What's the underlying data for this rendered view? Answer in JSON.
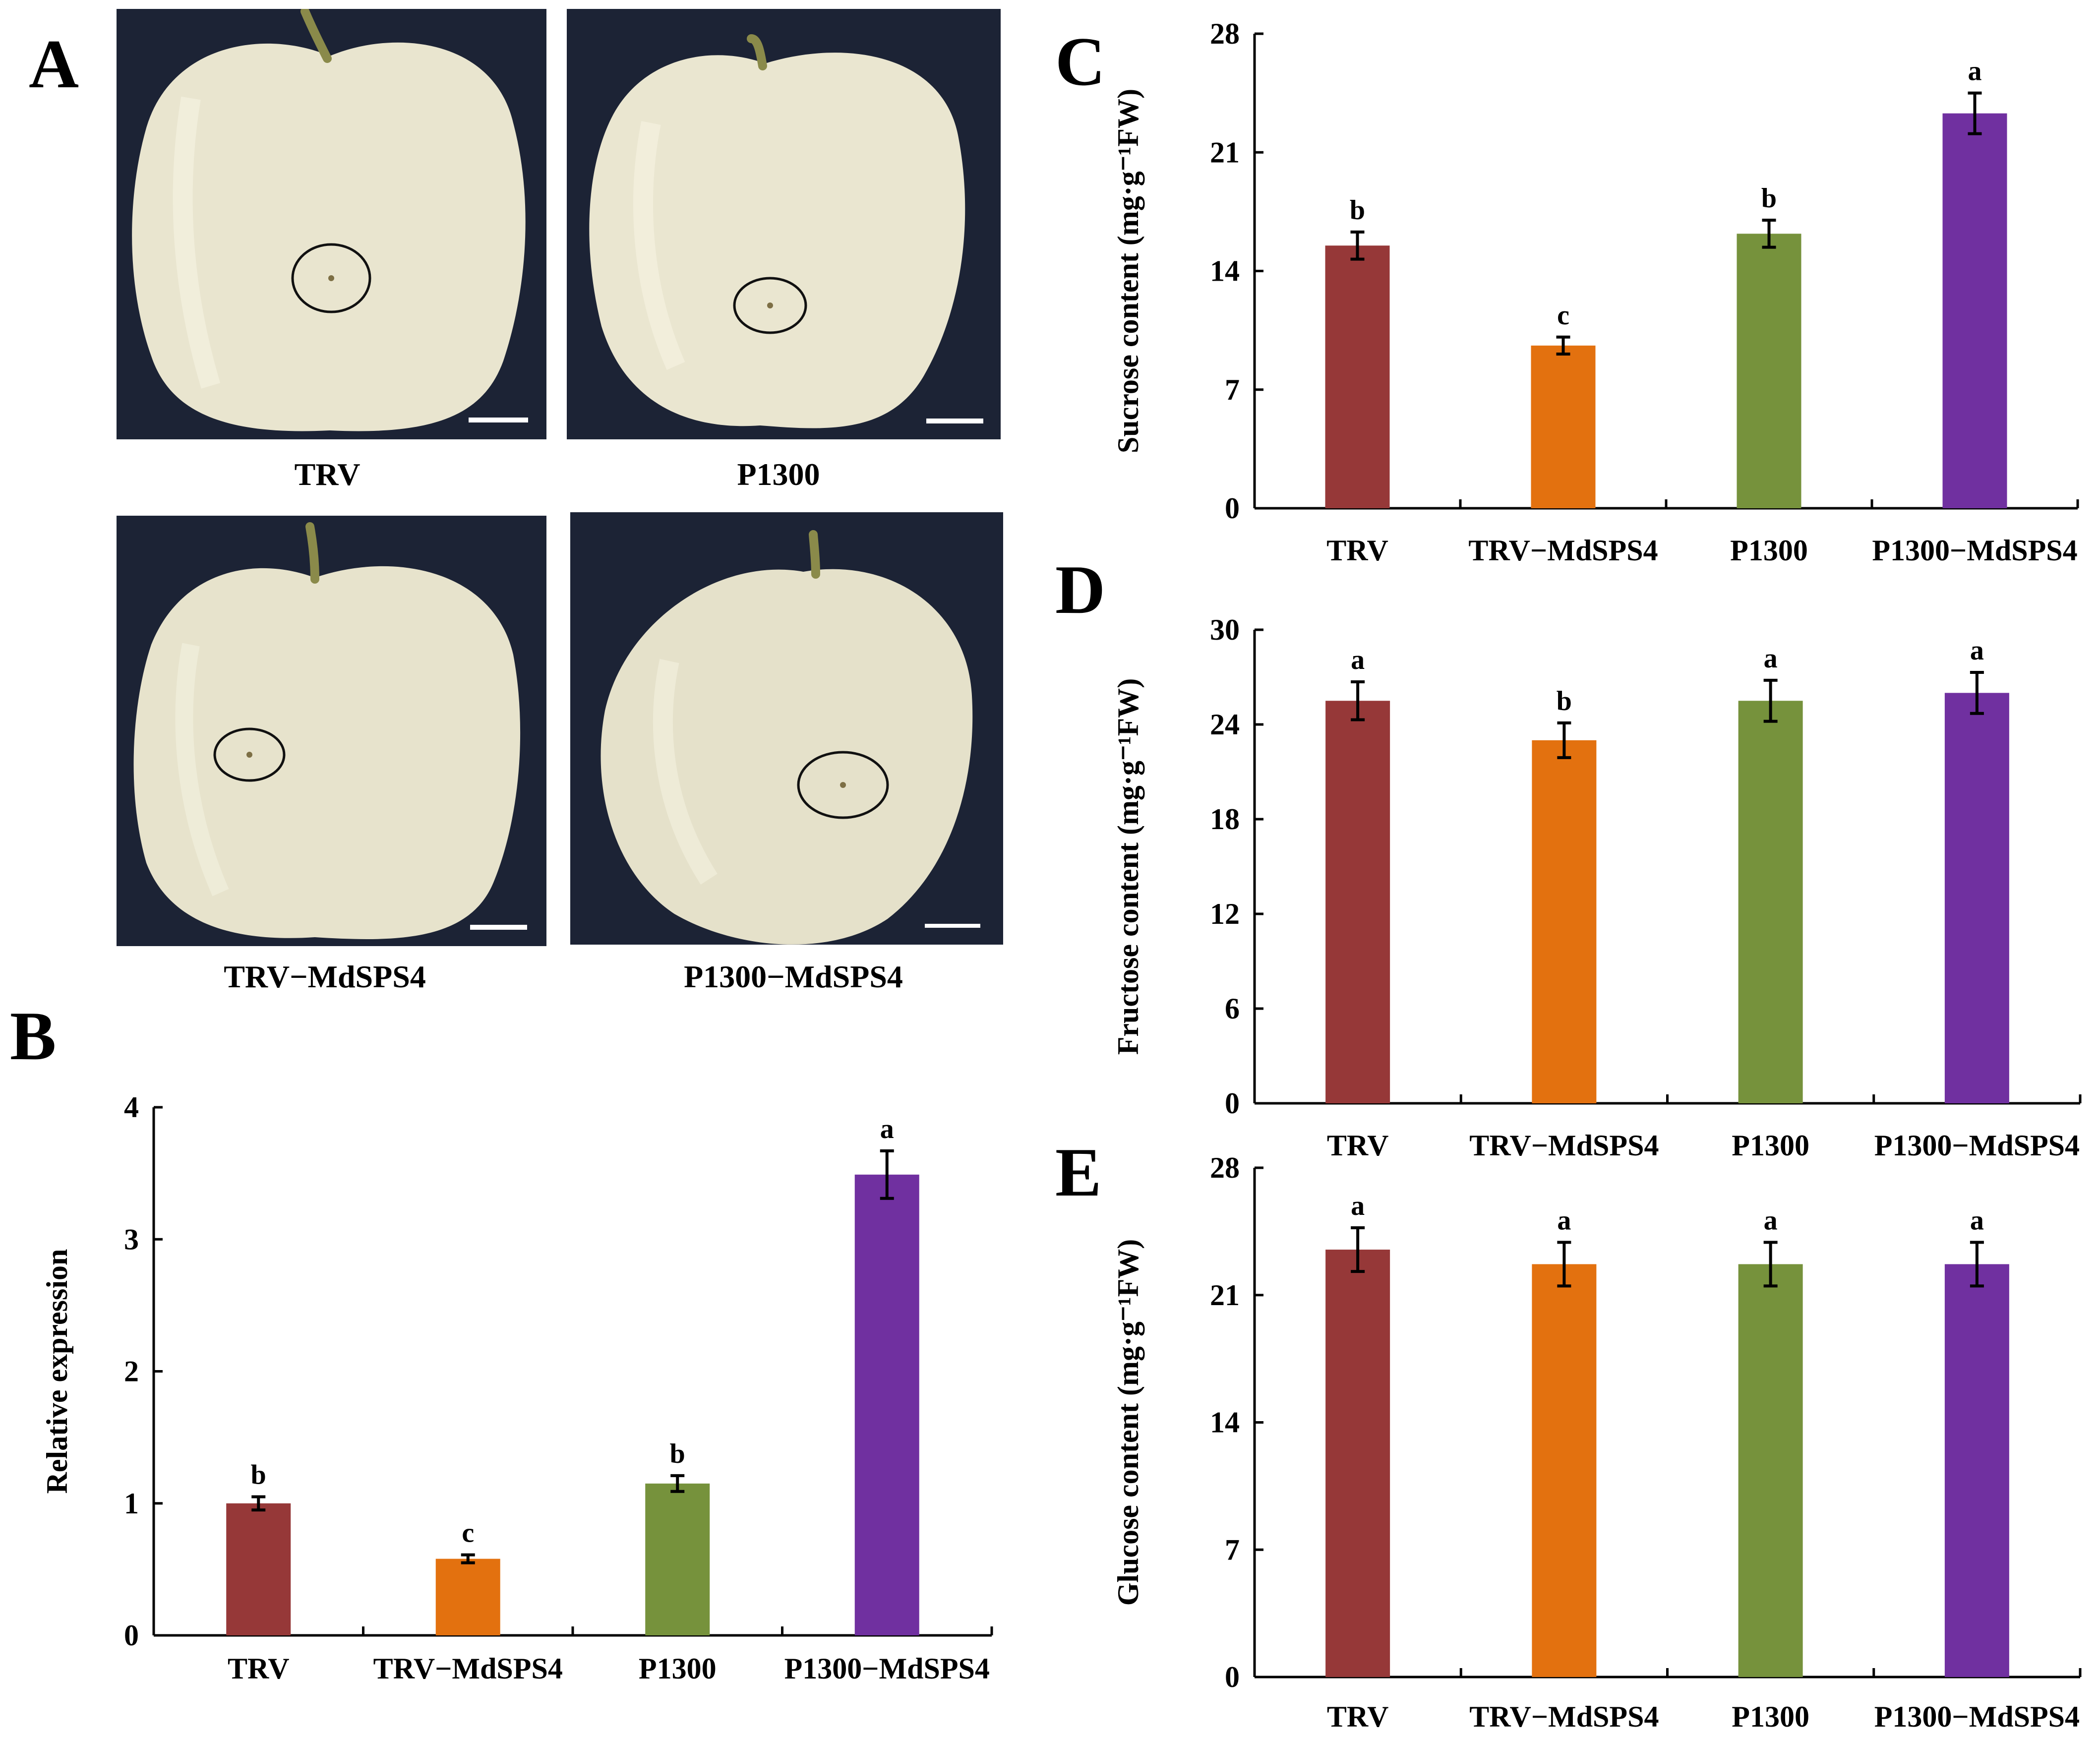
{
  "panels": {
    "A": "A",
    "B": "B",
    "C": "C",
    "D": "D",
    "E": "E"
  },
  "photos": [
    {
      "caption": "TRV"
    },
    {
      "caption": "P1300"
    },
    {
      "caption": "TRV−MdSPS4"
    },
    {
      "caption": "P1300−MdSPS4"
    }
  ],
  "colors": {
    "TRV": "#963838",
    "TRV-MdSPS4": "#E3710F",
    "P1300": "#76923C",
    "P1300-MdSPS4": "#7030A0"
  },
  "chart_data": [
    {
      "panel": "B",
      "type": "bar",
      "categories": [
        "TRV",
        "TRV−MdSPS4",
        "P1300",
        "P1300−MdSPS4"
      ],
      "values": [
        1.0,
        0.58,
        1.15,
        3.49
      ],
      "errors": [
        0.05,
        0.03,
        0.06,
        0.18
      ],
      "labels": [
        "b",
        "c",
        "b",
        "a"
      ],
      "ylabel": "Relative expression",
      "ylim": [
        0,
        4
      ],
      "yticks": [
        "0",
        "1",
        "2",
        "3",
        "4"
      ],
      "colors": [
        "#963838",
        "#E3710F",
        "#76923C",
        "#7030A0"
      ]
    },
    {
      "panel": "C",
      "type": "bar",
      "categories": [
        "TRV",
        "TRV−MdSPS4",
        "P1300",
        "P1300−MdSPS4"
      ],
      "values": [
        15.5,
        9.6,
        16.2,
        23.3
      ],
      "errors": [
        0.8,
        0.5,
        0.8,
        1.2
      ],
      "labels": [
        "b",
        "c",
        "b",
        "a"
      ],
      "ylabel": "Sucrose content (mg·g⁻¹FW)",
      "ylim": [
        0,
        28
      ],
      "yticks": [
        "0",
        "7",
        "14",
        "21",
        "28"
      ],
      "colors": [
        "#963838",
        "#E3710F",
        "#76923C",
        "#7030A0"
      ]
    },
    {
      "panel": "D",
      "type": "bar",
      "categories": [
        "TRV",
        "TRV−MdSPS4",
        "P1300",
        "P1300−MdSPS4"
      ],
      "values": [
        25.5,
        23.0,
        25.5,
        26.0
      ],
      "errors": [
        1.2,
        1.1,
        1.3,
        1.3
      ],
      "labels": [
        "a",
        "b",
        "a",
        "a"
      ],
      "ylabel": "Fructose content (mg·g⁻¹FW)",
      "ylim": [
        0,
        30
      ],
      "yticks": [
        "0",
        "6",
        "12",
        "18",
        "24",
        "30"
      ],
      "colors": [
        "#963838",
        "#E3710F",
        "#76923C",
        "#7030A0"
      ]
    },
    {
      "panel": "E",
      "type": "bar",
      "categories": [
        "TRV",
        "TRV−MdSPS4",
        "P1300",
        "P1300−MdSPS4"
      ],
      "values": [
        23.5,
        22.7,
        22.7,
        22.7
      ],
      "errors": [
        1.2,
        1.2,
        1.2,
        1.2
      ],
      "labels": [
        "a",
        "a",
        "a",
        "a"
      ],
      "ylabel": "Glucose content (mg·g⁻¹FW)",
      "ylim": [
        0,
        28
      ],
      "yticks": [
        "0",
        "7",
        "14",
        "21",
        "28"
      ],
      "colors": [
        "#963838",
        "#E3710F",
        "#76923C",
        "#7030A0"
      ]
    }
  ]
}
